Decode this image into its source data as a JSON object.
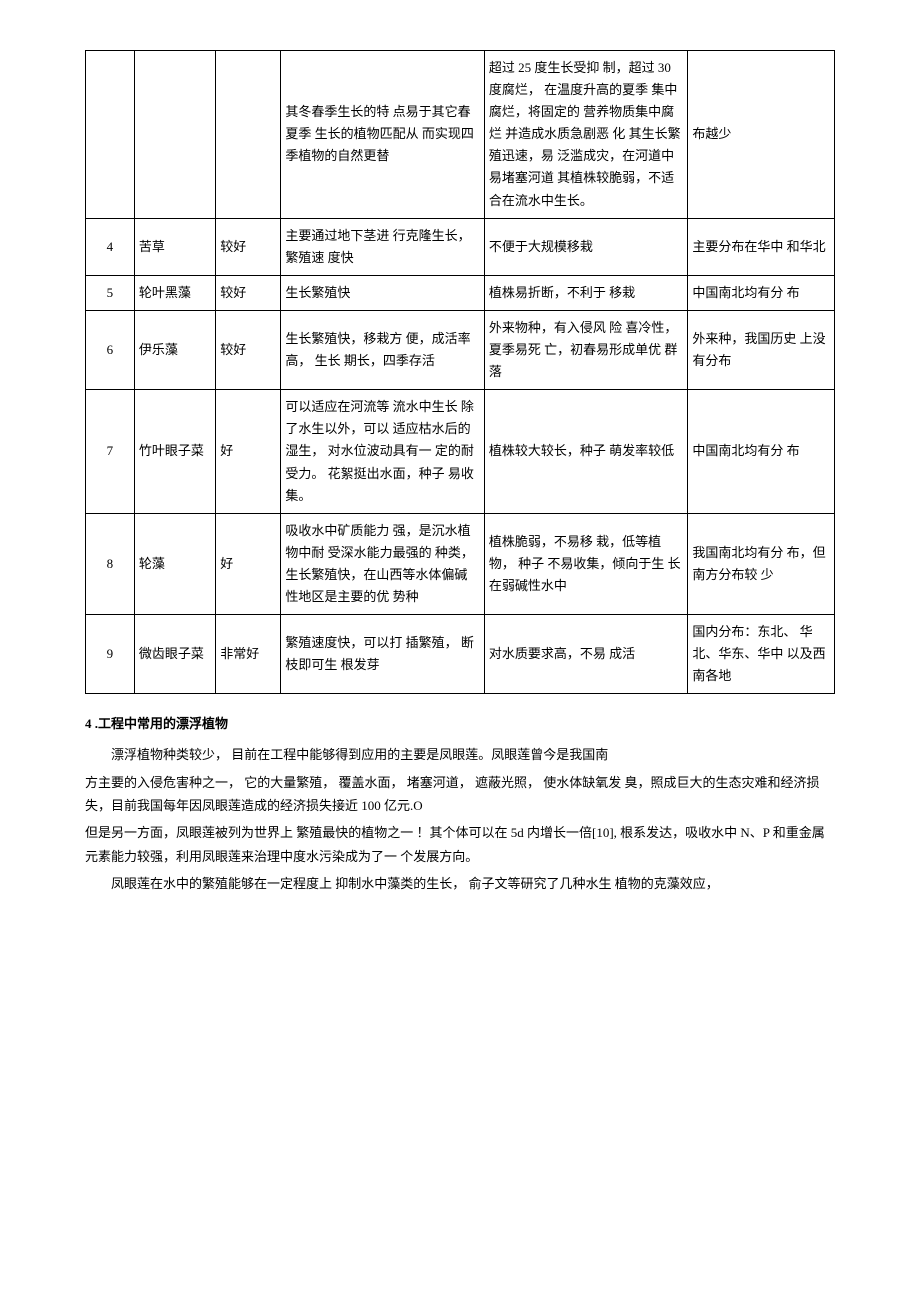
{
  "table": {
    "rows": [
      {
        "num": "",
        "name": "",
        "quality": "",
        "adv": "其冬春季生长的特 点易于其它春夏季 生长的植物匹配从 而实现四季植物的自然更替",
        "dis": "超过 25 度生长受抑 制，超过 30 度腐烂， 在温度升高的夏季 集中腐烂，将固定的 营养物质集中腐烂 并造成水质急剧恶 化 其生长繁殖迅速，易 泛滥成灾，在河道中 易堵塞河道 其植株较脆弱，不适 合在流水中生长。",
        "dist": "布越少"
      },
      {
        "num": "4",
        "name": "苦草",
        "quality": "较好",
        "adv": "主要通过地下茎进 行克隆生长， 繁殖速 度快",
        "dis": "不便于大规模移栽",
        "dist": "主要分布在华中 和华北"
      },
      {
        "num": "5",
        "name": "轮叶黑藻",
        "quality": "较好",
        "adv": "生长繁殖快",
        "dis": "植株易折断，不利于 移栽",
        "dist": "中国南北均有分 布"
      },
      {
        "num": "6",
        "name": "伊乐藻",
        "quality": "较好",
        "adv": "生长繁殖快，移栽方 便，成活率高， 生长 期长，四季存活",
        "dis": "外来物种，有入侵风 险 喜冷性，夏季易死 亡，初春易形成单优 群落",
        "dist": "外来种，我国历史 上没有分布"
      },
      {
        "num": "7",
        "name": "竹叶眼子菜",
        "quality": "好",
        "adv": "可以适应在河流等 流水中生长 除了水生以外，可以 适应枯水后的湿生， 对水位波动具有一 定的耐受力。 花絮挺出水面，种子 易收集。",
        "dis": "植株较大较长，种子 萌发率较低",
        "dist": "中国南北均有分 布"
      },
      {
        "num": "8",
        "name": "轮藻",
        "quality": "好",
        "adv": "吸收水中矿质能力 强，是沉水植物中耐 受深水能力最强的 种类，生长繁殖快，在山西等水体偏碱 性地区是主要的优 势种",
        "dis": "植株脆弱，不易移 栽，低等植物， 种子 不易收集，倾向于生 长在弱碱性水中",
        "dist": "我国南北均有分 布，但南方分布较 少"
      },
      {
        "num": "9",
        "name": "微齿眼子菜",
        "quality": "非常好",
        "adv": "繁殖速度快，可以打 插繁殖， 断枝即可生 根发芽",
        "dis": "对水质要求高，不易 成活",
        "dist": "国内分布：东北、 华北、华东、华中 以及西南各地"
      }
    ]
  },
  "section": {
    "heading": "4 .工程中常用的漂浮植物",
    "p1": "漂浮植物种类较少， 目前在工程中能够得到应用的主要是凤眼莲。凤眼莲曾今是我国南",
    "p2": "方主要的入侵危害种之一， 它的大量繁殖， 覆盖水面， 堵塞河道， 遮蔽光照， 使水体缺氧发 臭，照成巨大的生态灾难和经济损失，目前我国每年因凤眼莲造成的经济损失接近 100 亿元.O",
    "p3": "但是另一方面，凤眼莲被列为世界上 繁殖最快的植物之一 ！其个体可以在 5d 内增长一倍[10], 根系发达，吸收水中 N、P 和重金属元素能力较强，利用凤眼莲来治理中度水污染成为了一 个发展方向。",
    "p4": "凤眼莲在水中的繁殖能够在一定程度上 抑制水中藻类的生长， 俞子文等研究了几种水生 植物的克藻效应，"
  }
}
